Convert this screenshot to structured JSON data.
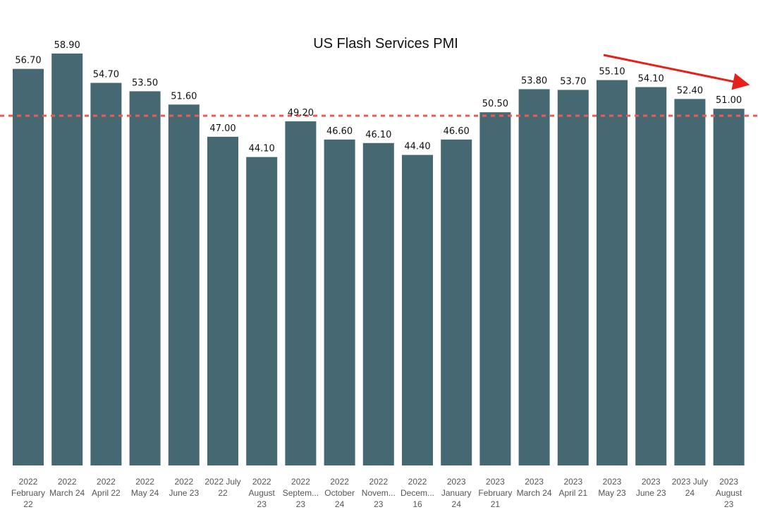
{
  "chart_data": {
    "type": "bar",
    "title": "US Flash Services PMI",
    "xlabel": "",
    "ylabel": "",
    "ylim": [
      0,
      60.5
    ],
    "grid": false,
    "legend": "none",
    "bar_color": "#466872",
    "reference_line": {
      "value": 50,
      "color": "#f05a55",
      "style": "dashed"
    },
    "trend_arrow": {
      "from_category": "2023 May 23",
      "to_category": "2023 August 23",
      "color": "#e8201a"
    },
    "categories": [
      "2022 February 22",
      "2022 March 24",
      "2022 April 22",
      "2022 May 24",
      "2022 June 23",
      "2022 July 22",
      "2022 August 23",
      "2022 September 23",
      "2022 October 24",
      "2022 November 23",
      "2022 December 16",
      "2023 January 24",
      "2023 February 21",
      "2023 March 24",
      "2023 April 21",
      "2023 May 23",
      "2023 June 23",
      "2023 July 24",
      "2023 August 23"
    ],
    "tick_labels": [
      [
        "2022",
        "February",
        "22"
      ],
      [
        "2022",
        "March 24"
      ],
      [
        "2022",
        "April 22"
      ],
      [
        "2022",
        "May 24"
      ],
      [
        "2022",
        "June 23"
      ],
      [
        "2022 July",
        "22"
      ],
      [
        "2022",
        "August",
        "23"
      ],
      [
        "2022",
        "Septem...",
        "23"
      ],
      [
        "2022",
        "October",
        "24"
      ],
      [
        "2022",
        "Novem...",
        "23"
      ],
      [
        "2022",
        "Decem...",
        "16"
      ],
      [
        "2023",
        "January",
        "24"
      ],
      [
        "2023",
        "February",
        "21"
      ],
      [
        "2023",
        "March 24"
      ],
      [
        "2023",
        "April 21"
      ],
      [
        "2023",
        "May 23"
      ],
      [
        "2023",
        "June 23"
      ],
      [
        "2023 July",
        "24"
      ],
      [
        "2023",
        "August",
        "23"
      ]
    ],
    "values": [
      56.7,
      58.9,
      54.7,
      53.5,
      51.6,
      47.0,
      44.1,
      49.2,
      46.6,
      46.1,
      44.4,
      46.6,
      50.5,
      53.8,
      53.7,
      55.1,
      54.1,
      52.4,
      51.0
    ],
    "data_labels": [
      "56.70",
      "58.90",
      "54.70",
      "53.50",
      "51.60",
      "47.00",
      "44.10",
      "49.20",
      "46.60",
      "46.10",
      "44.40",
      "46.60",
      "50.50",
      "53.80",
      "53.70",
      "55.10",
      "54.10",
      "52.40",
      "51.00"
    ]
  }
}
